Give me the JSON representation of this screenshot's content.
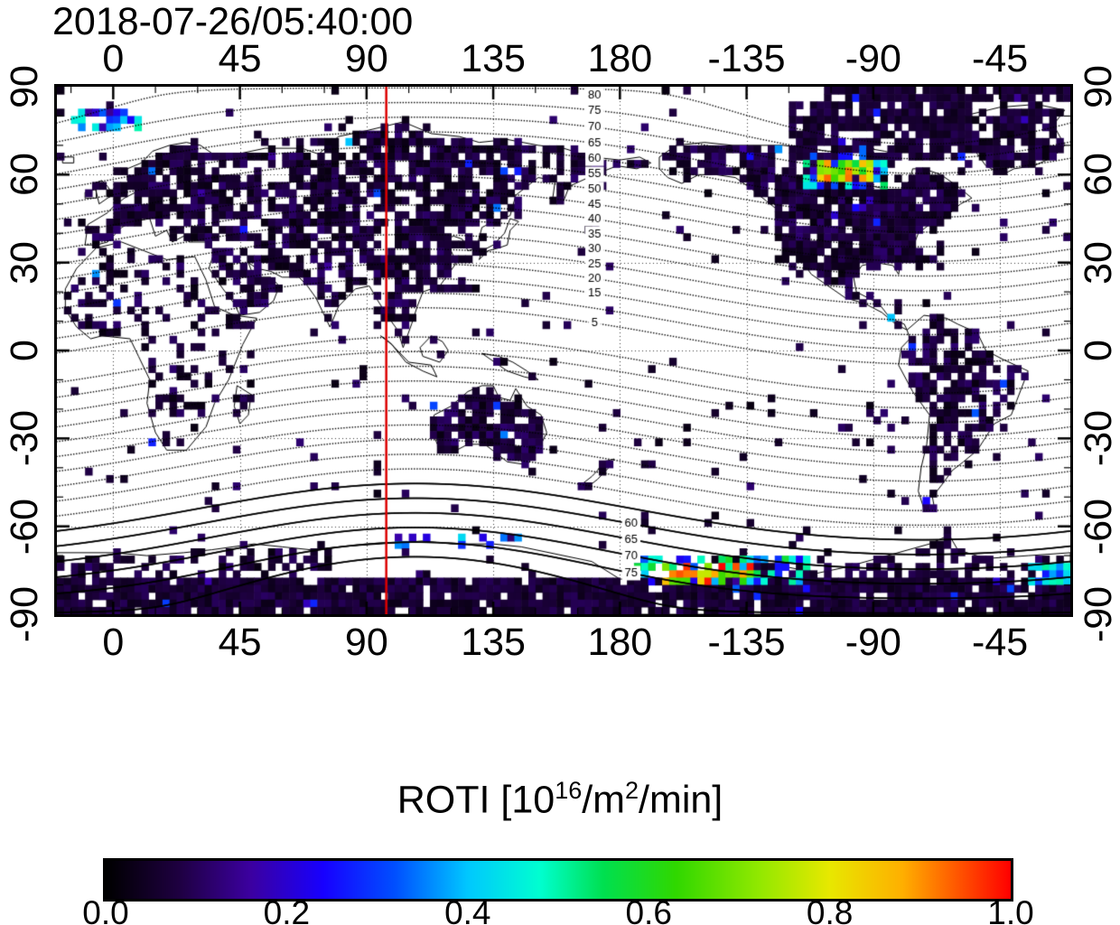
{
  "timestamp": "2018-07-26/05:40:00",
  "colorbar": {
    "title_text": "ROTI [10^16/m^2/min]",
    "title_parts": {
      "base": "ROTI  [10",
      "sup1": "16",
      "mid": "/m",
      "sup2": "2",
      "end": "/min]"
    },
    "ticks": [
      "0.0",
      "0.2",
      "0.4",
      "0.6",
      "0.8",
      "1.0"
    ],
    "tick_values": [
      0,
      0.2,
      0.4,
      0.6,
      0.8,
      1
    ]
  },
  "chart_data": {
    "type": "heatmap",
    "title": "2018-07-26/05:40:00",
    "xlabel": "",
    "ylabel": "",
    "value_label": "ROTI [10^16/m^2/min]",
    "value_range": [
      0,
      1
    ],
    "x_axis": {
      "range": [
        -20,
        340
      ],
      "tick_lons": [
        0,
        45,
        90,
        135,
        180,
        225,
        270,
        315
      ],
      "tick_labels": [
        "0",
        "45",
        "90",
        "135",
        "180",
        "-135",
        "-90",
        "-45"
      ]
    },
    "y_axis": {
      "range": [
        -90,
        90
      ],
      "tick_lats": [
        90,
        60,
        30,
        0,
        -30,
        -60,
        -90
      ],
      "tick_labels": [
        "90",
        "60",
        "30",
        "0",
        "-30",
        "-60",
        "-90"
      ]
    },
    "grid": {
      "lat_lines": [
        -60,
        -30,
        0,
        30,
        60
      ],
      "style": "dotted"
    },
    "red_meridian_lon": 97,
    "red_meridian_color": "#dd0000",
    "cell_size_deg": 2.5,
    "seed": 7,
    "ocean_scatter_p": 0.03,
    "colormap": [
      [
        0,
        "#000000"
      ],
      [
        0.08,
        "#1e0040"
      ],
      [
        0.16,
        "#3c00a0"
      ],
      [
        0.24,
        "#1800ff"
      ],
      [
        0.32,
        "#0050ff"
      ],
      [
        0.4,
        "#00c8ff"
      ],
      [
        0.48,
        "#00ffd0"
      ],
      [
        0.55,
        "#00e050"
      ],
      [
        0.63,
        "#30d800"
      ],
      [
        0.72,
        "#90e800"
      ],
      [
        0.8,
        "#e8e800"
      ],
      [
        0.88,
        "#ffb000"
      ],
      [
        0.94,
        "#ff5800"
      ],
      [
        1,
        "#ff0000"
      ]
    ],
    "mag_contours": {
      "pole_lat": 80.4,
      "pole_lon": -72.6,
      "values_north": [
        5,
        10,
        15,
        20,
        25,
        30,
        35,
        40,
        45,
        50,
        55,
        60,
        65,
        70,
        75,
        80
      ],
      "values_south": [
        -5,
        -10,
        -15,
        -20,
        -25,
        -30,
        -35,
        -40,
        -45,
        -50,
        -55,
        -60,
        -65,
        -70,
        -75,
        -80
      ],
      "solid_south_min_abs": 55,
      "label_lon_north": 171,
      "labels_north": [
        80,
        75,
        70,
        65,
        60,
        55,
        50,
        45,
        40,
        35,
        30,
        25,
        20,
        15,
        5
      ],
      "label_lon_south": 184,
      "labels_south": [
        -60,
        -65,
        -70,
        -75
      ]
    },
    "land_polygons": [
      {
        "name": "africa",
        "fill_p": 0.3,
        "pts": [
          -17,
          21,
          -13,
          28,
          -6,
          35,
          3,
          37,
          11,
          34,
          19,
          31,
          29,
          32,
          33,
          24,
          36,
          15,
          43,
          12,
          51,
          11,
          46,
          2,
          41,
          -10,
          36,
          -18,
          33,
          -26,
          26,
          -34,
          19,
          -34,
          15,
          -28,
          12,
          -18,
          13,
          -10,
          9,
          -2,
          6,
          4,
          -4,
          5,
          -8,
          4,
          -13,
          8,
          -17,
          14
        ]
      },
      {
        "name": "eurasia",
        "fill_p": 0.6,
        "pts": [
          -10,
          36,
          -9,
          43,
          -2,
          47,
          0,
          49,
          4,
          52,
          8,
          54,
          8,
          57,
          5,
          58,
          5,
          62,
          10,
          64,
          14,
          68,
          20,
          70,
          26,
          71,
          31,
          70,
          37,
          66,
          44,
          67,
          54,
          69,
          67,
          69,
          73,
          67,
          80,
          73,
          90,
          75,
          103,
          78,
          113,
          74,
          123,
          73,
          130,
          71,
          140,
          72,
          151,
          70,
          160,
          69,
          170,
          66,
          180,
          65,
          187,
          66,
          191,
          64,
          186,
          62,
          179,
          63,
          171,
          60,
          162,
          56,
          160,
          51,
          156,
          51,
          157,
          58,
          151,
          59,
          143,
          53,
          141,
          46,
          135,
          44,
          131,
          42,
          129,
          35,
          126,
          34,
          124,
          38,
          121,
          39,
          117,
          38,
          120,
          34,
          122,
          30,
          116,
          22,
          110,
          20,
          108,
          15,
          106,
          9,
          103,
          1,
          101,
          7,
          98,
          11,
          94,
          17,
          91,
          22,
          86,
          21,
          80,
          15,
          77,
          8,
          72,
          18,
          69,
          22,
          66,
          25,
          60,
          25,
          56,
          27,
          51,
          28,
          48,
          30,
          50,
          25,
          56,
          25,
          59,
          22,
          57,
          17,
          52,
          13,
          45,
          12,
          43,
          16,
          39,
          21,
          34,
          28,
          36,
          34,
          33,
          37,
          27,
          37,
          25,
          39,
          21,
          37,
          19,
          41,
          15,
          39,
          13,
          45,
          7,
          44,
          3,
          42,
          -2,
          37,
          -6,
          36
        ]
      },
      {
        "name": "uk",
        "fill_p": 0.7,
        "pts": [
          -5,
          50,
          -2,
          52,
          0,
          53,
          -2,
          56,
          -4,
          58,
          -7,
          57,
          -6,
          54
        ]
      },
      {
        "name": "ireland",
        "fill_p": 0.6,
        "pts": [
          -10,
          52,
          -6,
          52,
          -6,
          55,
          -10,
          54
        ]
      },
      {
        "name": "iceland",
        "fill_p": 0.6,
        "pts": [
          -18,
          66,
          -14,
          66,
          -14,
          64,
          -18,
          64
        ]
      },
      {
        "name": "north-america",
        "fill_p": 0.78,
        "pts": [
          -166,
          66,
          -160,
          70,
          -150,
          71,
          -140,
          70,
          -130,
          70,
          -122,
          70,
          -114,
          69,
          -106,
          68,
          -98,
          68,
          -92,
          69,
          -86,
          68,
          -82,
          67,
          -86,
          64,
          -90,
          61,
          -93,
          58,
          -90,
          56,
          -85,
          55,
          -80,
          55,
          -77,
          58,
          -76,
          62,
          -72,
          62,
          -66,
          60,
          -60,
          56,
          -55,
          52,
          -59,
          50,
          -65,
          45,
          -70,
          43,
          -74,
          40,
          -76,
          35,
          -80,
          32,
          -81,
          26,
          -83,
          29,
          -89,
          30,
          -94,
          29,
          -97,
          25,
          -96,
          20,
          -92,
          18,
          -88,
          16,
          -84,
          11,
          -79,
          9,
          -78,
          7,
          -82,
          9,
          -87,
          13,
          -93,
          16,
          -100,
          18,
          -106,
          22,
          -112,
          26,
          -115,
          30,
          -119,
          34,
          -122,
          38,
          -124,
          43,
          -124,
          48,
          -128,
          51,
          -133,
          55,
          -139,
          59,
          -146,
          60,
          -152,
          60,
          -158,
          57,
          -163,
          59,
          -166,
          62
        ]
      },
      {
        "name": "greenland",
        "fill_p": 0.8,
        "pts": [
          -44,
          60,
          -50,
          63,
          -53,
          67,
          -56,
          72,
          -61,
          76,
          -67,
          77,
          -58,
          80,
          -45,
          83,
          -32,
          84,
          -22,
          82,
          -26,
          77,
          -22,
          70,
          -26,
          66,
          -33,
          63,
          -40,
          62
        ]
      },
      {
        "name": "south-america",
        "fill_p": 0.55,
        "pts": [
          -78,
          7,
          -72,
          12,
          -64,
          11,
          -60,
          9,
          -53,
          6,
          -50,
          0,
          -44,
          -3,
          -35,
          -7,
          -37,
          -12,
          -39,
          -17,
          -41,
          -22,
          -47,
          -25,
          -53,
          -34,
          -58,
          -38,
          -62,
          -41,
          -65,
          -45,
          -69,
          -50,
          -68,
          -55,
          -72,
          -54,
          -74,
          -48,
          -73,
          -40,
          -71,
          -32,
          -70,
          -22,
          -76,
          -14,
          -81,
          -5,
          -80,
          1,
          -77,
          4
        ]
      },
      {
        "name": "australia",
        "fill_p": 0.85,
        "pts": [
          114,
          -22,
          113,
          -27,
          116,
          -34,
          120,
          -35,
          126,
          -32,
          132,
          -32,
          136,
          -35,
          140,
          -38,
          147,
          -39,
          151,
          -34,
          154,
          -28,
          152,
          -22,
          147,
          -19,
          143,
          -13,
          141,
          -17,
          137,
          -16,
          135,
          -12,
          131,
          -12,
          126,
          -14,
          120,
          -19
        ]
      },
      {
        "name": "antarctica",
        "fill_p": 0.45,
        "pts": [
          -20,
          -69,
          0,
          -69,
          12,
          -70,
          25,
          -69,
          35,
          -68,
          50,
          -66,
          60,
          -67,
          70,
          -68,
          80,
          -67,
          95,
          -66,
          110,
          -65,
          120,
          -66,
          135,
          -66,
          145,
          -67,
          160,
          -70,
          170,
          -72,
          180,
          -78,
          195,
          -78,
          210,
          -76,
          225,
          -73,
          240,
          -74,
          250,
          -76,
          260,
          -74,
          275,
          -70,
          290,
          -66,
          297,
          -63,
          300,
          -68,
          310,
          -71,
          325,
          -70,
          340,
          -69,
          340,
          -90,
          -20,
          -90
        ]
      },
      {
        "name": "madagascar",
        "fill_p": 0.4,
        "pts": [
          44,
          -12,
          49,
          -15,
          48,
          -22,
          45,
          -25,
          43,
          -19
        ]
      },
      {
        "name": "japan",
        "fill_p": 0.8,
        "pts": [
          130,
          31,
          133,
          34,
          137,
          35,
          140,
          36,
          141,
          41,
          144,
          44,
          141,
          45,
          139,
          40,
          135,
          36,
          131,
          34
        ]
      },
      {
        "name": "new-zealand",
        "fill_p": 0.65,
        "pts": [
          166,
          -46,
          170,
          -43,
          172,
          -41,
          174,
          -38,
          178,
          -37,
          176,
          -40,
          172,
          -44,
          168,
          -47
        ]
      },
      {
        "name": "borneo",
        "fill_p": 0.3,
        "pts": [
          109,
          1,
          113,
          5,
          117,
          3,
          119,
          0,
          116,
          -4,
          110,
          -2
        ]
      },
      {
        "name": "sumatra-java",
        "fill_p": 0.3,
        "pts": [
          95,
          5,
          99,
          2,
          104,
          -4,
          110,
          -7,
          115,
          -9,
          113,
          -5,
          105,
          -4,
          98,
          3
        ]
      },
      {
        "name": "new-guinea",
        "fill_p": 0.35,
        "pts": [
          131,
          -1,
          137,
          -2,
          142,
          -4,
          147,
          -7,
          151,
          -10,
          146,
          -9,
          140,
          -7,
          134,
          -3
        ]
      }
    ],
    "fill_regions": [
      {
        "name": "arctic-top",
        "lon": [
          253,
          340
        ],
        "lat": [
          84,
          90
        ],
        "p": 0.9,
        "v": [
          0.03,
          0.09
        ]
      },
      {
        "name": "arctic-canada",
        "lon": [
          240,
          305
        ],
        "lat": [
          66,
          84
        ],
        "p": 0.8,
        "v": [
          0.03,
          0.1
        ]
      },
      {
        "name": "europe-densify",
        "lon": [
          0,
          42
        ],
        "lat": [
          45,
          62
        ],
        "p": 0.5,
        "v": [
          0.02,
          0.1
        ]
      },
      {
        "name": "siberia-densify",
        "lon": [
          60,
          140
        ],
        "lat": [
          50,
          72
        ],
        "p": 0.45,
        "v": [
          0.02,
          0.1
        ]
      },
      {
        "name": "east-asia-densify",
        "lon": [
          100,
          130
        ],
        "lat": [
          20,
          45
        ],
        "p": 0.4,
        "v": [
          0.02,
          0.1
        ]
      },
      {
        "name": "us-densify",
        "lon": [
          236,
          295
        ],
        "lat": [
          28,
          60
        ],
        "p": 0.5,
        "v": [
          0.02,
          0.1
        ]
      },
      {
        "name": "antarctic-band",
        "lon": [
          -20,
          340
        ],
        "lat": [
          -90,
          -78
        ],
        "p": 0.88,
        "v": [
          0.03,
          0.1
        ]
      },
      {
        "name": "south-indian-clear",
        "lon": [
          80,
          172
        ],
        "lat": [
          -77,
          -65
        ],
        "p": 0.93,
        "mode": "clear"
      }
    ],
    "hotspots": [
      {
        "name": "canada-aurora-outer",
        "lon": [
          246,
          274
        ],
        "lat": [
          56,
          67
        ],
        "p": 0.65,
        "v": [
          0.18,
          0.55
        ]
      },
      {
        "name": "canada-aurora-core",
        "lon": [
          251,
          270
        ],
        "lat": [
          58,
          64
        ],
        "p": 0.9,
        "v": [
          0.55,
          1.0
        ]
      },
      {
        "name": "greenland-sea-patch",
        "lon": [
          -14,
          9
        ],
        "lat": [
          76,
          83
        ],
        "p": 0.75,
        "v": [
          0.12,
          0.5
        ]
      },
      {
        "name": "south-aurora-outer",
        "lon": [
          186,
          248
        ],
        "lat": [
          -80,
          -71
        ],
        "p": 0.5,
        "v": [
          0.2,
          0.6
        ]
      },
      {
        "name": "south-aurora-core",
        "lon": [
          195,
          228
        ],
        "lat": [
          -79,
          -73
        ],
        "p": 0.8,
        "v": [
          0.5,
          1.0
        ]
      },
      {
        "name": "south-secondary",
        "lon": [
          100,
          148
        ],
        "lat": [
          -68,
          -62
        ],
        "p": 0.28,
        "v": [
          0.15,
          0.5
        ]
      },
      {
        "name": "south-edge-patch",
        "lon": [
          325,
          339
        ],
        "lat": [
          -79,
          -73
        ],
        "p": 0.7,
        "v": [
          0.25,
          0.55
        ]
      }
    ]
  }
}
